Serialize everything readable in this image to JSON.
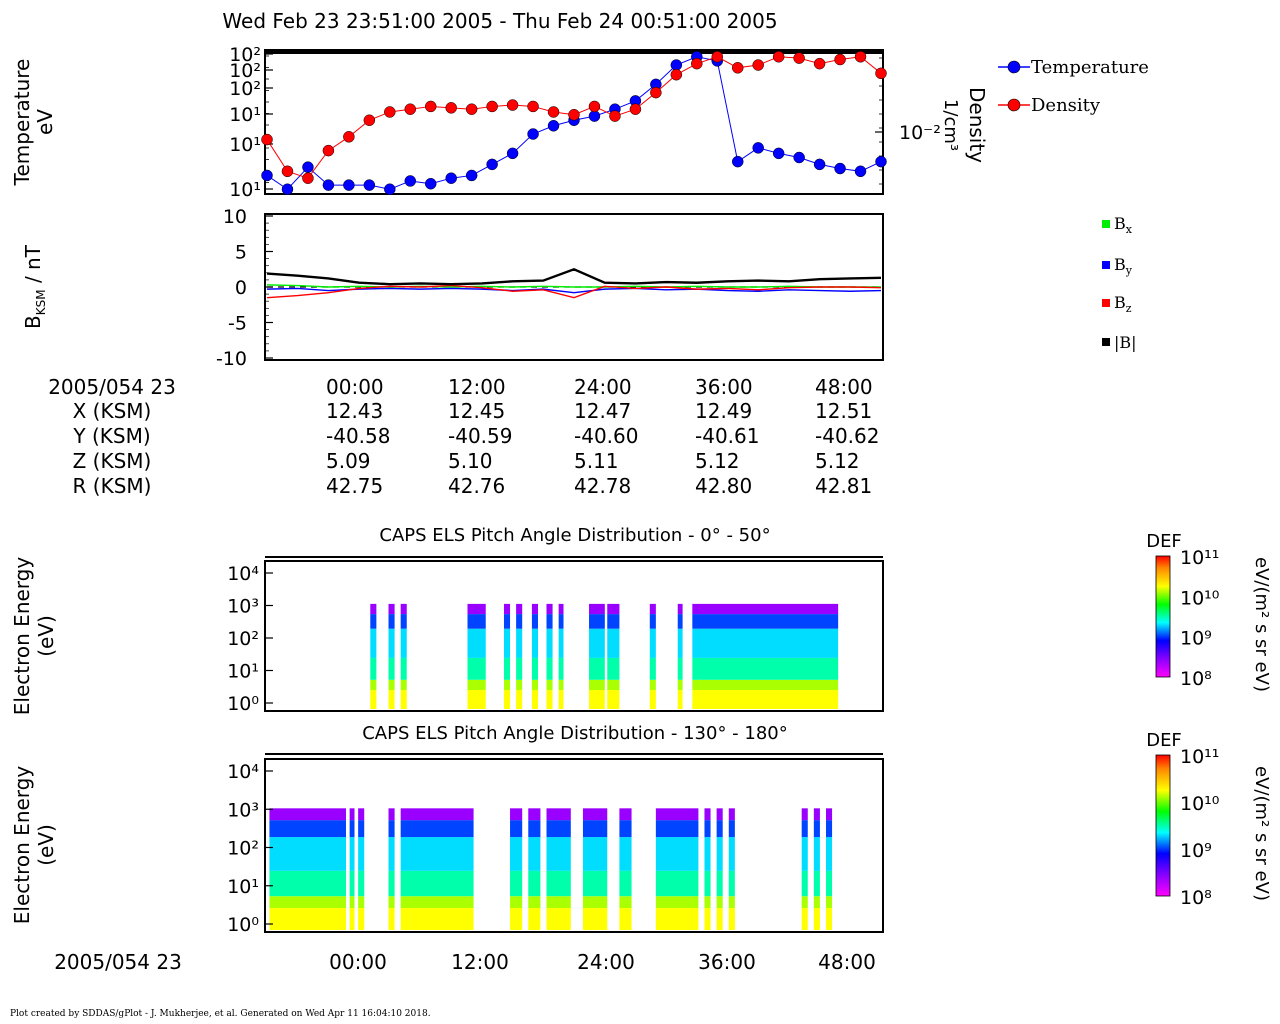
{
  "title": "Wed Feb 23 23:51:00 2005 - Thu Feb 24 00:51:00 2005",
  "panel_plasma": {
    "ylabel_left_line1": "Temperature",
    "ylabel_left_line2": "eV",
    "ylabel_right_line1": "Density",
    "ylabel_right_line2": "1/cm³",
    "left_ticks": [
      "10¹",
      "10¹",
      "10¹",
      "10²",
      "10²",
      "10²"
    ],
    "right_ticks": [
      "10⁻²"
    ],
    "legend": [
      "Temperature",
      "Density"
    ],
    "colors": {
      "temperature": "#0000ff",
      "density": "#ff0000"
    }
  },
  "panel_mag": {
    "ylabel": "B",
    "ylabel_sub": "KSM",
    "ylabel_unit": " / nT",
    "yticks": [
      "10",
      "5",
      "0",
      "-5",
      "-10"
    ],
    "legend": [
      {
        "main": "B",
        "sub": "x",
        "color": "#00ee00"
      },
      {
        "main": "B",
        "sub": "y",
        "color": "#0000ff"
      },
      {
        "main": "B",
        "sub": "z",
        "color": "#ff0000"
      },
      {
        "main": "|B|",
        "sub": "",
        "color": "#000000"
      }
    ]
  },
  "ephemeris": {
    "row_labels": [
      "2005/054 23",
      "X (KSM)",
      "Y (KSM)",
      "Z (KSM)",
      "R (KSM)"
    ],
    "columns": [
      [
        "00:00",
        "12.43",
        "-40.58",
        "5.09",
        "42.75"
      ],
      [
        "12:00",
        "12.45",
        "-40.59",
        "5.10",
        "42.76"
      ],
      [
        "24:00",
        "12.47",
        "-40.60",
        "5.11",
        "42.78"
      ],
      [
        "36:00",
        "12.49",
        "-40.61",
        "5.12",
        "42.80"
      ],
      [
        "48:00",
        "12.51",
        "-40.62",
        "5.12",
        "42.81"
      ]
    ]
  },
  "spectrogram_top": {
    "title": "CAPS ELS Pitch Angle Distribution - 0° - 50°",
    "ylabel_line1": "Electron Energy",
    "ylabel_line2": "(eV)",
    "yticks": [
      "10⁴",
      "10³",
      "10²",
      "10¹",
      "10⁰"
    ]
  },
  "spectrogram_bottom": {
    "title": "CAPS ELS Pitch Angle Distribution - 130° - 180°",
    "ylabel_line1": "Electron Energy",
    "ylabel_line2": "(eV)",
    "yticks": [
      "10⁴",
      "10³",
      "10²",
      "10¹",
      "10⁰"
    ]
  },
  "colorbar": {
    "label": "DEF",
    "unit": "eV/(m² s sr eV)",
    "ticks": [
      "10¹¹",
      "10¹⁰",
      "10⁹",
      "10⁸"
    ]
  },
  "bottom_axis": {
    "date_label": "2005/054 23",
    "ticks": [
      "00:00",
      "12:00",
      "24:00",
      "36:00",
      "48:00"
    ]
  },
  "footer": "Plot created by SDDAS/gPlot - J. Mukherjee, et al.  Generated on Wed Apr 11 16:04:10 2018.",
  "chart_data": [
    {
      "type": "scatter",
      "name": "plasma moments",
      "x_unit": "seconds after 23:51:00",
      "x_ticks": [
        0,
        12,
        24,
        36,
        48
      ],
      "series": [
        {
          "name": "Temperature",
          "x": [
            0,
            2,
            4,
            6,
            8,
            10,
            12,
            14,
            16,
            18,
            20,
            22,
            24,
            26,
            28,
            30,
            32,
            34,
            36,
            38,
            40,
            42,
            44,
            46,
            48,
            50,
            52,
            54,
            56,
            58,
            60
          ],
          "y": [
            0.12,
            0.02,
            0.18,
            0.05,
            0.05,
            0.05,
            0.02,
            0.08,
            0.06,
            0.1,
            0.12,
            0.2,
            0.28,
            0.42,
            0.48,
            0.52,
            0.55,
            0.6,
            0.66,
            0.78,
            0.92,
            0.98,
            0.95,
            0.22,
            0.32,
            0.28,
            0.25,
            0.2,
            0.17,
            0.15,
            0.22
          ]
        },
        {
          "name": "Density",
          "x": [
            0,
            2,
            4,
            6,
            8,
            10,
            12,
            14,
            16,
            18,
            20,
            22,
            24,
            26,
            28,
            30,
            32,
            34,
            36,
            38,
            40,
            42,
            44,
            46,
            48,
            50,
            52,
            54,
            56,
            58,
            60
          ],
          "y": [
            0.38,
            0.15,
            0.1,
            0.3,
            0.4,
            0.52,
            0.58,
            0.6,
            0.62,
            0.61,
            0.6,
            0.62,
            0.63,
            0.62,
            0.58,
            0.56,
            0.62,
            0.55,
            0.6,
            0.72,
            0.85,
            0.93,
            0.98,
            0.9,
            0.92,
            0.98,
            0.97,
            0.93,
            0.96,
            0.98,
            0.86
          ]
        }
      ]
    },
    {
      "type": "line",
      "name": "magnetic field",
      "ylim": [
        -10,
        10
      ],
      "x": [
        0,
        3,
        6,
        9,
        12,
        15,
        18,
        21,
        24,
        27,
        30,
        33,
        36,
        39,
        42,
        45,
        48,
        51,
        54,
        57,
        60
      ],
      "series": [
        {
          "name": "Bx",
          "values": [
            0.3,
            0.2,
            0.0,
            0.1,
            0.0,
            0.1,
            0.0,
            0.1,
            0.0,
            0.1,
            0.0,
            0.0,
            0.1,
            0.0,
            0.1,
            0.0,
            0.0,
            0.1,
            0.0,
            0.0,
            0.0
          ]
        },
        {
          "name": "By",
          "values": [
            -0.3,
            -0.2,
            -0.5,
            -0.3,
            -0.2,
            -0.3,
            -0.2,
            -0.3,
            -0.5,
            -0.3,
            -0.8,
            -0.3,
            -0.2,
            -0.4,
            -0.3,
            -0.5,
            -0.6,
            -0.4,
            -0.5,
            -0.6,
            -0.5
          ]
        },
        {
          "name": "Bz",
          "values": [
            -1.5,
            -1.2,
            -0.8,
            -0.2,
            0.1,
            0.0,
            0.2,
            -0.1,
            -0.6,
            -0.4,
            -1.5,
            0.1,
            -0.2,
            0.0,
            -0.3,
            -0.2,
            -0.4,
            -0.1,
            0.0,
            0.0,
            -0.1
          ]
        },
        {
          "name": "|B|",
          "values": [
            1.9,
            1.6,
            1.2,
            0.6,
            0.4,
            0.5,
            0.4,
            0.5,
            0.8,
            0.9,
            2.5,
            0.6,
            0.5,
            0.7,
            0.6,
            0.8,
            0.9,
            0.8,
            1.1,
            1.2,
            1.3
          ]
        }
      ]
    },
    {
      "type": "heatmap",
      "name": "pitch angle 0-50",
      "energy_decades": [
        0,
        1,
        2,
        3,
        4
      ],
      "active_time_bands": [
        [
          8.5,
          9.0
        ],
        [
          10.0,
          10.5
        ],
        [
          11.0,
          11.5
        ],
        [
          16.5,
          18.0
        ],
        [
          19.5,
          20.0
        ],
        [
          20.5,
          21.0
        ],
        [
          21.8,
          22.3
        ],
        [
          23.0,
          23.5
        ],
        [
          24.0,
          24.4
        ],
        [
          26.5,
          27.8
        ],
        [
          28.0,
          29.0
        ],
        [
          31.5,
          32.0
        ],
        [
          33.8,
          34.2
        ],
        [
          35.0,
          47.0
        ]
      ]
    },
    {
      "type": "heatmap",
      "name": "pitch angle 130-180",
      "energy_decades": [
        0,
        1,
        2,
        3,
        4
      ],
      "active_time_bands": [
        [
          0.2,
          6.5
        ],
        [
          6.8,
          7.2
        ],
        [
          7.5,
          8.0
        ],
        [
          10.0,
          10.5
        ],
        [
          11.0,
          17.0
        ],
        [
          20.0,
          21.0
        ],
        [
          21.5,
          22.5
        ],
        [
          23.0,
          25.0
        ],
        [
          26.0,
          28.0
        ],
        [
          29.0,
          30.0
        ],
        [
          32.0,
          35.5
        ],
        [
          36.0,
          36.5
        ],
        [
          37.0,
          37.5
        ],
        [
          38.0,
          38.5
        ],
        [
          44.0,
          44.5
        ],
        [
          45.0,
          45.5
        ],
        [
          46.0,
          46.5
        ]
      ]
    }
  ]
}
